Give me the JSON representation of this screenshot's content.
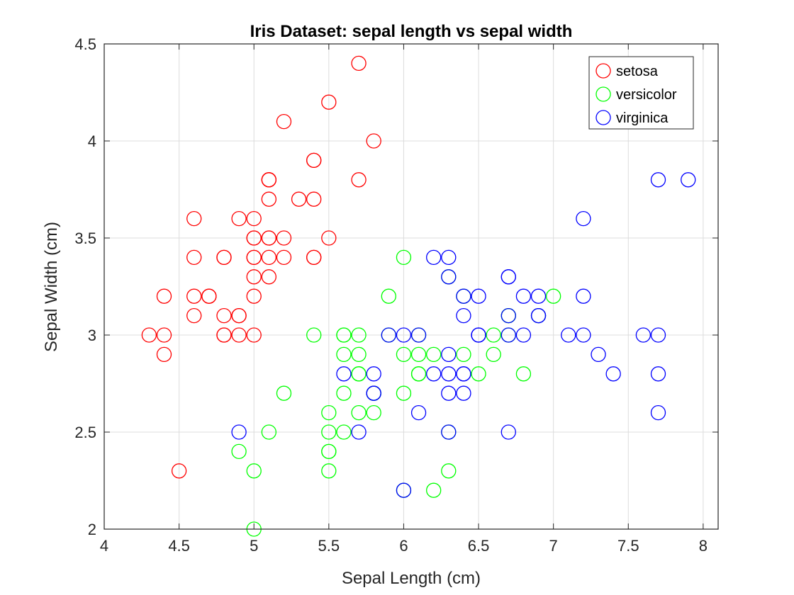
{
  "chart_data": {
    "type": "scatter",
    "title": "Iris Dataset: sepal length vs sepal width",
    "xlabel": "Sepal Length (cm)",
    "ylabel": "Sepal Width  (cm)",
    "xlim": [
      4,
      8.1
    ],
    "ylim": [
      2,
      4.5
    ],
    "xticks": [
      "4",
      "4.5",
      "5",
      "5.5",
      "6",
      "6.5",
      "7",
      "7.5",
      "8"
    ],
    "yticks": [
      "2",
      "2.5",
      "3",
      "3.5",
      "4",
      "4.5"
    ],
    "grid": true,
    "legend_position": "top-right",
    "marker": "open-circle",
    "series": [
      {
        "name": "setosa",
        "color": "#ff0000",
        "points": [
          [
            5.1,
            3.5
          ],
          [
            4.9,
            3.0
          ],
          [
            4.7,
            3.2
          ],
          [
            4.6,
            3.1
          ],
          [
            5.0,
            3.6
          ],
          [
            5.4,
            3.9
          ],
          [
            4.6,
            3.4
          ],
          [
            5.0,
            3.4
          ],
          [
            4.4,
            2.9
          ],
          [
            4.9,
            3.1
          ],
          [
            5.4,
            3.7
          ],
          [
            4.8,
            3.4
          ],
          [
            4.8,
            3.0
          ],
          [
            4.3,
            3.0
          ],
          [
            5.8,
            4.0
          ],
          [
            5.7,
            4.4
          ],
          [
            5.4,
            3.9
          ],
          [
            5.1,
            3.5
          ],
          [
            5.7,
            3.8
          ],
          [
            5.1,
            3.8
          ],
          [
            5.4,
            3.4
          ],
          [
            5.1,
            3.7
          ],
          [
            4.6,
            3.6
          ],
          [
            5.1,
            3.3
          ],
          [
            4.8,
            3.4
          ],
          [
            5.0,
            3.0
          ],
          [
            5.0,
            3.4
          ],
          [
            5.2,
            3.5
          ],
          [
            5.2,
            3.4
          ],
          [
            4.7,
            3.2
          ],
          [
            4.8,
            3.1
          ],
          [
            5.4,
            3.4
          ],
          [
            5.2,
            4.1
          ],
          [
            5.5,
            4.2
          ],
          [
            4.9,
            3.1
          ],
          [
            5.0,
            3.2
          ],
          [
            5.5,
            3.5
          ],
          [
            4.9,
            3.6
          ],
          [
            4.4,
            3.0
          ],
          [
            5.1,
            3.4
          ],
          [
            5.0,
            3.5
          ],
          [
            4.5,
            2.3
          ],
          [
            4.4,
            3.2
          ],
          [
            5.0,
            3.5
          ],
          [
            5.1,
            3.8
          ],
          [
            4.8,
            3.0
          ],
          [
            5.1,
            3.8
          ],
          [
            4.6,
            3.2
          ],
          [
            5.3,
            3.7
          ],
          [
            5.0,
            3.3
          ]
        ]
      },
      {
        "name": "versicolor",
        "color": "#00ff00",
        "points": [
          [
            7.0,
            3.2
          ],
          [
            6.4,
            3.2
          ],
          [
            6.9,
            3.1
          ],
          [
            5.5,
            2.3
          ],
          [
            6.5,
            2.8
          ],
          [
            5.7,
            2.8
          ],
          [
            6.3,
            3.3
          ],
          [
            4.9,
            2.4
          ],
          [
            6.6,
            2.9
          ],
          [
            5.2,
            2.7
          ],
          [
            5.0,
            2.0
          ],
          [
            5.9,
            3.0
          ],
          [
            6.0,
            2.2
          ],
          [
            6.1,
            2.9
          ],
          [
            5.6,
            2.9
          ],
          [
            6.7,
            3.1
          ],
          [
            5.6,
            3.0
          ],
          [
            5.8,
            2.7
          ],
          [
            6.2,
            2.2
          ],
          [
            5.6,
            2.5
          ],
          [
            5.9,
            3.2
          ],
          [
            6.1,
            2.8
          ],
          [
            6.3,
            2.5
          ],
          [
            6.1,
            2.8
          ],
          [
            6.4,
            2.9
          ],
          [
            6.6,
            3.0
          ],
          [
            6.8,
            2.8
          ],
          [
            6.7,
            3.0
          ],
          [
            6.0,
            2.9
          ],
          [
            5.7,
            2.6
          ],
          [
            5.5,
            2.4
          ],
          [
            5.5,
            2.4
          ],
          [
            5.8,
            2.7
          ],
          [
            6.0,
            2.7
          ],
          [
            5.4,
            3.0
          ],
          [
            6.0,
            3.4
          ],
          [
            6.7,
            3.1
          ],
          [
            6.3,
            2.3
          ],
          [
            5.6,
            3.0
          ],
          [
            5.5,
            2.5
          ],
          [
            5.5,
            2.6
          ],
          [
            6.1,
            3.0
          ],
          [
            5.8,
            2.6
          ],
          [
            5.0,
            2.3
          ],
          [
            5.6,
            2.7
          ],
          [
            5.7,
            3.0
          ],
          [
            5.7,
            2.9
          ],
          [
            6.2,
            2.9
          ],
          [
            5.1,
            2.5
          ],
          [
            5.7,
            2.8
          ]
        ]
      },
      {
        "name": "virginica",
        "color": "#0000ff",
        "points": [
          [
            6.3,
            3.3
          ],
          [
            5.8,
            2.7
          ],
          [
            7.1,
            3.0
          ],
          [
            6.3,
            2.9
          ],
          [
            6.5,
            3.0
          ],
          [
            7.6,
            3.0
          ],
          [
            4.9,
            2.5
          ],
          [
            7.3,
            2.9
          ],
          [
            6.7,
            2.5
          ],
          [
            7.2,
            3.6
          ],
          [
            6.5,
            3.2
          ],
          [
            6.4,
            2.7
          ],
          [
            6.8,
            3.0
          ],
          [
            5.7,
            2.5
          ],
          [
            5.8,
            2.8
          ],
          [
            6.4,
            3.2
          ],
          [
            6.5,
            3.0
          ],
          [
            7.7,
            3.8
          ],
          [
            7.7,
            2.6
          ],
          [
            6.0,
            2.2
          ],
          [
            6.9,
            3.2
          ],
          [
            5.6,
            2.8
          ],
          [
            7.7,
            2.8
          ],
          [
            6.3,
            2.7
          ],
          [
            6.7,
            3.3
          ],
          [
            7.2,
            3.2
          ],
          [
            6.2,
            2.8
          ],
          [
            6.1,
            3.0
          ],
          [
            6.4,
            2.8
          ],
          [
            7.2,
            3.0
          ],
          [
            7.4,
            2.8
          ],
          [
            7.9,
            3.8
          ],
          [
            6.4,
            2.8
          ],
          [
            6.3,
            2.8
          ],
          [
            6.1,
            2.6
          ],
          [
            7.7,
            3.0
          ],
          [
            6.3,
            3.4
          ],
          [
            6.4,
            3.1
          ],
          [
            6.0,
            3.0
          ],
          [
            6.9,
            3.1
          ],
          [
            6.7,
            3.1
          ],
          [
            6.9,
            3.1
          ],
          [
            5.8,
            2.7
          ],
          [
            6.8,
            3.2
          ],
          [
            6.7,
            3.3
          ],
          [
            6.7,
            3.0
          ],
          [
            6.3,
            2.5
          ],
          [
            6.5,
            3.0
          ],
          [
            6.2,
            3.4
          ],
          [
            5.9,
            3.0
          ]
        ]
      }
    ]
  }
}
